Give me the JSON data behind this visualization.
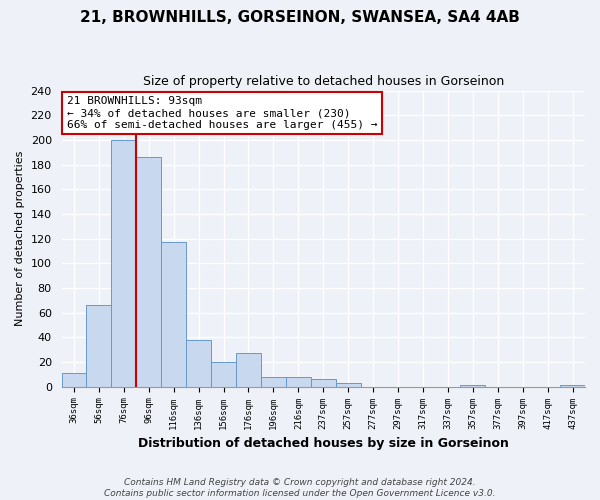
{
  "title": "21, BROWNHILLS, GORSEINON, SWANSEA, SA4 4AB",
  "subtitle": "Size of property relative to detached houses in Gorseinon",
  "xlabel": "Distribution of detached houses by size in Gorseinon",
  "ylabel": "Number of detached properties",
  "bar_labels": [
    "36sqm",
    "56sqm",
    "76sqm",
    "96sqm",
    "116sqm",
    "136sqm",
    "156sqm",
    "176sqm",
    "196sqm",
    "216sqm",
    "237sqm",
    "257sqm",
    "277sqm",
    "297sqm",
    "317sqm",
    "337sqm",
    "357sqm",
    "377sqm",
    "397sqm",
    "417sqm",
    "437sqm"
  ],
  "bar_heights": [
    11,
    66,
    200,
    186,
    117,
    38,
    20,
    27,
    8,
    8,
    6,
    3,
    0,
    0,
    0,
    0,
    1,
    0,
    0,
    0,
    1
  ],
  "bar_color": "#c8d8ee",
  "bar_edge_color": "#6699cc",
  "vline_color": "#cc0000",
  "annotation_title": "21 BROWNHILLS: 93sqm",
  "annotation_line1": "← 34% of detached houses are smaller (230)",
  "annotation_line2": "66% of semi-detached houses are larger (455) →",
  "annotation_box_color": "white",
  "annotation_box_edge": "#cc0000",
  "ylim": [
    0,
    240
  ],
  "yticks": [
    0,
    20,
    40,
    60,
    80,
    100,
    120,
    140,
    160,
    180,
    200,
    220,
    240
  ],
  "footer1": "Contains HM Land Registry data © Crown copyright and database right 2024.",
  "footer2": "Contains public sector information licensed under the Open Government Licence v3.0.",
  "bg_color": "#eef2f8"
}
